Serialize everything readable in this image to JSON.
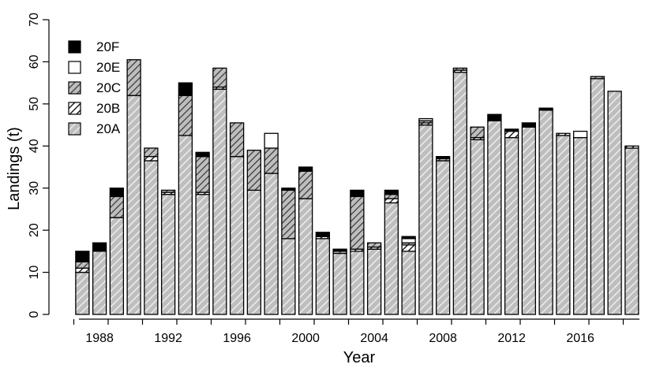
{
  "chart_data": {
    "type": "bar",
    "stacked": true,
    "xlabel": "Year",
    "ylabel": "Landings (t)",
    "ylim": [
      0,
      70
    ],
    "yticks": [
      0,
      10,
      20,
      30,
      40,
      50,
      60,
      70
    ],
    "x_tick_labels": [
      "1988",
      "1992",
      "1996",
      "2000",
      "2004",
      "2008",
      "2012",
      "2016"
    ],
    "legend_position": "top-left",
    "legend_order": [
      "20F",
      "20E",
      "20C",
      "20B",
      "20A"
    ],
    "categories": [
      1987,
      1988,
      1989,
      1990,
      1991,
      1992,
      1993,
      1994,
      1995,
      1996,
      1997,
      1998,
      1999,
      2000,
      2001,
      2002,
      2003,
      2004,
      2005,
      2006,
      2007,
      2008,
      2009,
      2010,
      2011,
      2012,
      2013,
      2014,
      2015,
      2016,
      2017,
      2018,
      2019
    ],
    "series": [
      {
        "name": "20A",
        "fill": "hatch-light",
        "values": [
          10.0,
          15.0,
          23.0,
          52.0,
          36.5,
          28.5,
          42.5,
          28.5,
          53.5,
          37.5,
          29.5,
          33.5,
          18.0,
          27.5,
          18.0,
          14.5,
          15.0,
          15.5,
          26.5,
          15.0,
          45.0,
          36.5,
          57.5,
          41.5,
          46.0,
          42.0,
          44.5,
          48.5,
          42.5,
          42.0,
          56.0,
          53.0,
          39.5
        ]
      },
      {
        "name": "20B",
        "fill": "hatch-white",
        "values": [
          1.0,
          0,
          0,
          0,
          1.0,
          0.5,
          0,
          0.5,
          0.5,
          0,
          0,
          0,
          0,
          0,
          0.5,
          0,
          0.5,
          0.5,
          1.0,
          1.5,
          0.5,
          0,
          0.5,
          0.5,
          0,
          1.5,
          0,
          0,
          0.5,
          0,
          0,
          0,
          0.5
        ]
      },
      {
        "name": "20C",
        "fill": "hatch-dark",
        "values": [
          1.5,
          0,
          5.0,
          8.5,
          2.0,
          0.5,
          9.5,
          8.5,
          4.5,
          8.0,
          9.5,
          6.0,
          11.5,
          6.5,
          0,
          0.5,
          12.5,
          1.0,
          1.0,
          0.5,
          0.5,
          0.5,
          0.5,
          2.5,
          0,
          0,
          0,
          0,
          0,
          0,
          0.5,
          0,
          0
        ]
      },
      {
        "name": "20E",
        "fill": "white",
        "values": [
          0,
          0,
          0,
          0,
          0,
          0,
          0,
          0,
          0,
          0,
          0,
          3.5,
          0,
          0,
          0,
          0,
          0,
          0,
          0,
          1.0,
          0.5,
          0,
          0,
          0,
          0,
          0,
          0,
          0,
          0,
          1.5,
          0,
          0,
          0
        ]
      },
      {
        "name": "20F",
        "fill": "black",
        "values": [
          2.5,
          2.0,
          2.0,
          0,
          0,
          0,
          3.0,
          1.0,
          0,
          0,
          0,
          0,
          0.5,
          1.0,
          1.0,
          0.5,
          1.5,
          0,
          1.0,
          0.5,
          0,
          0.5,
          0,
          0,
          1.5,
          0.5,
          1.0,
          0.5,
          0,
          0,
          0,
          0,
          0
        ]
      }
    ]
  },
  "colors": {
    "axis": "#000000",
    "bar_outline": "#000000",
    "grey_fill": "#bebebe",
    "hatch_light_line": "#f2f2f2",
    "hatch_dark_line": "#333333",
    "black_fill": "#000000",
    "white_fill": "#ffffff"
  }
}
